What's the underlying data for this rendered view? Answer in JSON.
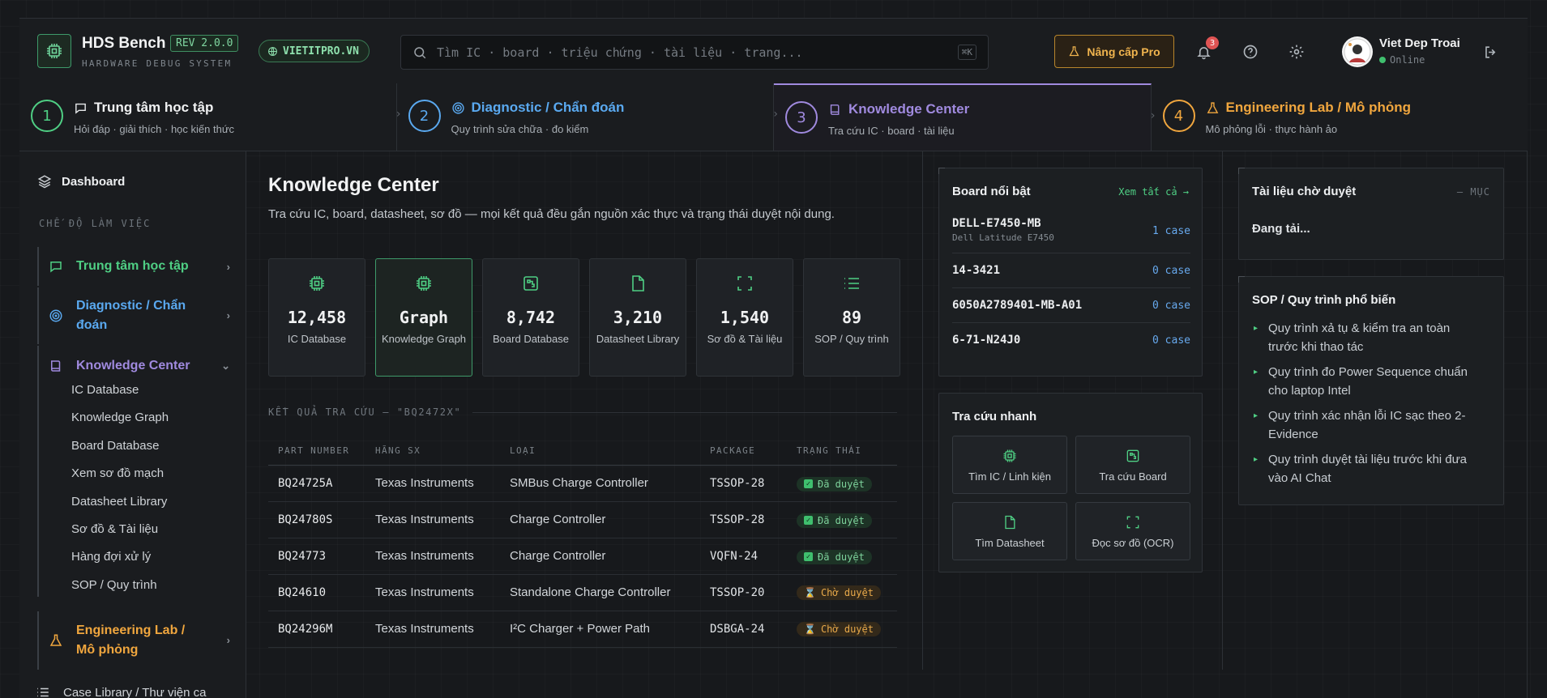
{
  "brand": {
    "title": "HDS Bench",
    "rev": "REV 2.0.0",
    "subtitle": "HARDWARE DEBUG SYSTEM",
    "site": "VIETITPRO.VN"
  },
  "search": {
    "placeholder": "Tìm IC · board · triệu chứng · tài liệu · trang...",
    "shortcut": "⌘K"
  },
  "header": {
    "upgrade": "Nâng cấp Pro",
    "notifications": "3",
    "user_name": "Viet Dep Troai",
    "user_status": "Online"
  },
  "steps": [
    {
      "num": "1",
      "title": "Trung tâm học tập",
      "sub": "Hỏi đáp · giải thích · học kiến thức",
      "color": "#4fcf84"
    },
    {
      "num": "2",
      "title": "Diagnostic / Chẩn đoán",
      "sub": "Quy trình sửa chữa · đo kiểm",
      "color": "#5aa9f0"
    },
    {
      "num": "3",
      "title": "Knowledge Center",
      "sub": "Tra cứu IC · board · tài liệu",
      "color": "#a08adf"
    },
    {
      "num": "4",
      "title": "Engineering Lab / Mô phỏng",
      "sub": "Mô phỏng lỗi · thực hành ảo",
      "color": "#f0a63e"
    }
  ],
  "sidebar": {
    "dashboard": "Dashboard",
    "section": "CHẾ ĐỘ LÀM VIỆC",
    "items": [
      {
        "label": "Trung tâm học tập"
      },
      {
        "label": "Diagnostic / Chẩn đoán"
      },
      {
        "label": "Knowledge Center"
      },
      {
        "label": "Engineering Lab / Mô phỏng"
      },
      {
        "label": "Case Library / Thư viện ca"
      }
    ],
    "sub_items": [
      "IC Database",
      "Knowledge Graph",
      "Board Database",
      "Xem sơ đồ mạch",
      "Datasheet Library",
      "Sơ đồ & Tài liệu",
      "Hàng đợi xử lý",
      "SOP / Quy trình"
    ]
  },
  "main": {
    "title": "Knowledge Center",
    "desc": "Tra cứu IC, board, datasheet, sơ đồ — mọi kết quả đều gắn nguồn xác thực và trạng thái duyệt nội dung.",
    "cards": [
      {
        "value": "12,458",
        "label": "IC Database",
        "icon": "chip-icon"
      },
      {
        "value": "Graph",
        "label": "Knowledge Graph",
        "icon": "chip-icon"
      },
      {
        "value": "8,742",
        "label": "Board Database",
        "icon": "board-icon"
      },
      {
        "value": "3,210",
        "label": "Datasheet Library",
        "icon": "file-icon"
      },
      {
        "value": "1,540",
        "label": "Sơ đồ & Tài liệu",
        "icon": "scan-icon"
      },
      {
        "value": "89",
        "label": "SOP / Quy trình",
        "icon": "list-icon"
      }
    ],
    "results_label": "KẾT QUẢ TRA CỨU — \"BQ2472X\"",
    "columns": [
      "PART NUMBER",
      "HÃNG SX",
      "LOẠI",
      "PACKAGE",
      "TRẠNG THÁI"
    ],
    "rows": [
      {
        "part": "BQ24725A",
        "maker": "Texas Instruments",
        "type": "SMBus Charge Controller",
        "pkg": "TSSOP-28",
        "status": "Đã duyệt",
        "ok": true
      },
      {
        "part": "BQ24780S",
        "maker": "Texas Instruments",
        "type": "Charge Controller",
        "pkg": "TSSOP-28",
        "status": "Đã duyệt",
        "ok": true
      },
      {
        "part": "BQ24773",
        "maker": "Texas Instruments",
        "type": "Charge Controller",
        "pkg": "VQFN-24",
        "status": "Đã duyệt",
        "ok": true
      },
      {
        "part": "BQ24610",
        "maker": "Texas Instruments",
        "type": "Standalone Charge Controller",
        "pkg": "TSSOP-20",
        "status": "Chờ duyệt",
        "ok": false
      },
      {
        "part": "BQ24296M",
        "maker": "Texas Instruments",
        "type": "I²C Charger + Power Path",
        "pkg": "DSBGA-24",
        "status": "Chờ duyệt",
        "ok": false
      }
    ]
  },
  "boards": {
    "title": "Board nổi bật",
    "link": "Xem tất cả →",
    "items": [
      {
        "name": "DELL-E7450-MB",
        "sub": "Dell Latitude E7450",
        "cases": "1 case"
      },
      {
        "name": "14-3421",
        "sub": "",
        "cases": "0 case"
      },
      {
        "name": "6050A2789401-MB-A01",
        "sub": "",
        "cases": "0 case"
      },
      {
        "name": "6-71-N24J0",
        "sub": "",
        "cases": "0 case"
      }
    ]
  },
  "quick": {
    "title": "Tra cứu nhanh",
    "buttons": [
      {
        "label": "Tìm IC / Linh kiện",
        "icon": "chip-icon"
      },
      {
        "label": "Tra cứu Board",
        "icon": "board-icon"
      },
      {
        "label": "Tìm Datasheet",
        "icon": "file-icon"
      },
      {
        "label": "Đọc sơ đồ (OCR)",
        "icon": "scan-icon"
      }
    ]
  },
  "pending": {
    "title": "Tài liệu chờ duyệt",
    "count": "— MỤC",
    "loading": "Đang tải..."
  },
  "sop": {
    "title": "SOP / Quy trình phổ biến",
    "items": [
      "Quy trình xả tụ & kiểm tra an toàn trước khi thao tác",
      "Quy trình đo Power Sequence chuẩn cho laptop Intel",
      "Quy trình xác nhận lỗi IC sạc theo 2-Evidence",
      "Quy trình duyệt tài liệu trước khi đưa vào AI Chat"
    ]
  },
  "colors": {
    "accent_green": "#4fcf84",
    "accent_blue": "#5aa9f0",
    "accent_purple": "#a08adf",
    "accent_orange": "#f0a63e"
  }
}
